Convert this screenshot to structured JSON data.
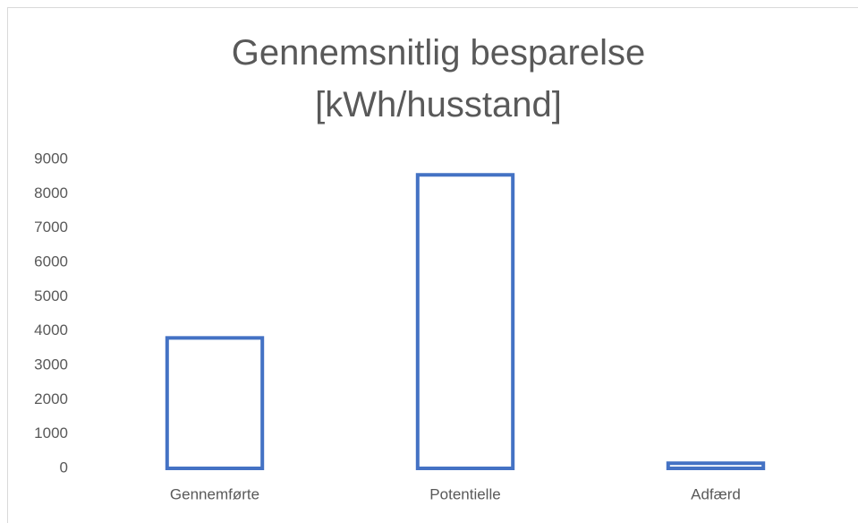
{
  "chart_data": {
    "type": "bar",
    "title": "Gennemsnitlig besparelse [kWh/husstand]",
    "categories": [
      "Gennemførte",
      "Potentielle",
      "Adfærd"
    ],
    "values": [
      3800,
      8550,
      150
    ],
    "color": "#4472c4",
    "ylim": [
      0,
      9000
    ],
    "yticks": [
      0,
      1000,
      2000,
      3000,
      4000,
      5000,
      6000,
      7000,
      8000,
      9000
    ],
    "grid": false
  }
}
